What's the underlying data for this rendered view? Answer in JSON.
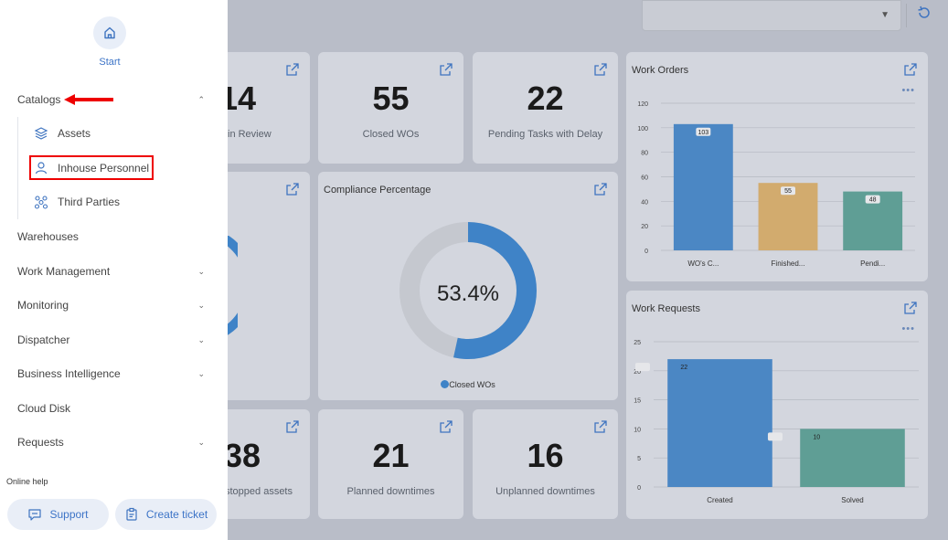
{
  "sidebar": {
    "start_label": "Start",
    "catalogs_label": "Catalogs",
    "catalog_items": [
      "Assets",
      "Inhouse Personnel",
      "Third Parties"
    ],
    "menu": {
      "warehouses": "Warehouses",
      "work_management": "Work Management",
      "monitoring": "Monitoring",
      "dispatcher": "Dispatcher",
      "business_intelligence": "Business Intelligence",
      "cloud_disk": "Cloud Disk",
      "requests": "Requests"
    },
    "online_help": "Online help",
    "support_label": "Support",
    "create_ticket_label": "Create ticket"
  },
  "kpis": {
    "in_review": {
      "value": "14",
      "label": "in Review"
    },
    "closed_wos": {
      "value": "55",
      "label": "Closed WOs"
    },
    "pending_delay": {
      "value": "22",
      "label": "Pending Tasks with Delay"
    },
    "stopped_assets": {
      "value": "38",
      "label": "stopped assets"
    },
    "planned_downtimes": {
      "value": "21",
      "label": "Planned downtimes"
    },
    "unplanned_downtimes": {
      "value": "16",
      "label": "Unplanned downtimes"
    }
  },
  "compliance": {
    "title": "Compliance Percentage",
    "value_label": "53.4%",
    "percent": 53.4,
    "legend": "Closed WOs",
    "color": "#3f83c7"
  },
  "chart_data": [
    {
      "type": "bar",
      "title": "Work Orders",
      "categories": [
        "WO's C...",
        "Finished...",
        "Pendi..."
      ],
      "values": [
        103,
        55,
        48
      ],
      "colors": [
        "#4b87c4",
        "#d2ab6e",
        "#5f9e95"
      ],
      "yticks": [
        0,
        20,
        40,
        60,
        80,
        100,
        120
      ],
      "ylim": [
        0,
        120
      ],
      "grid": true
    },
    {
      "type": "bar",
      "title": "Work Requests",
      "categories": [
        "Created",
        "Solved"
      ],
      "values": [
        22,
        10
      ],
      "colors": [
        "#4b87c4",
        "#5f9e95"
      ],
      "yticks": [
        0,
        5,
        10,
        15,
        20,
        25
      ],
      "ylim": [
        0,
        25
      ],
      "grid": true
    }
  ]
}
